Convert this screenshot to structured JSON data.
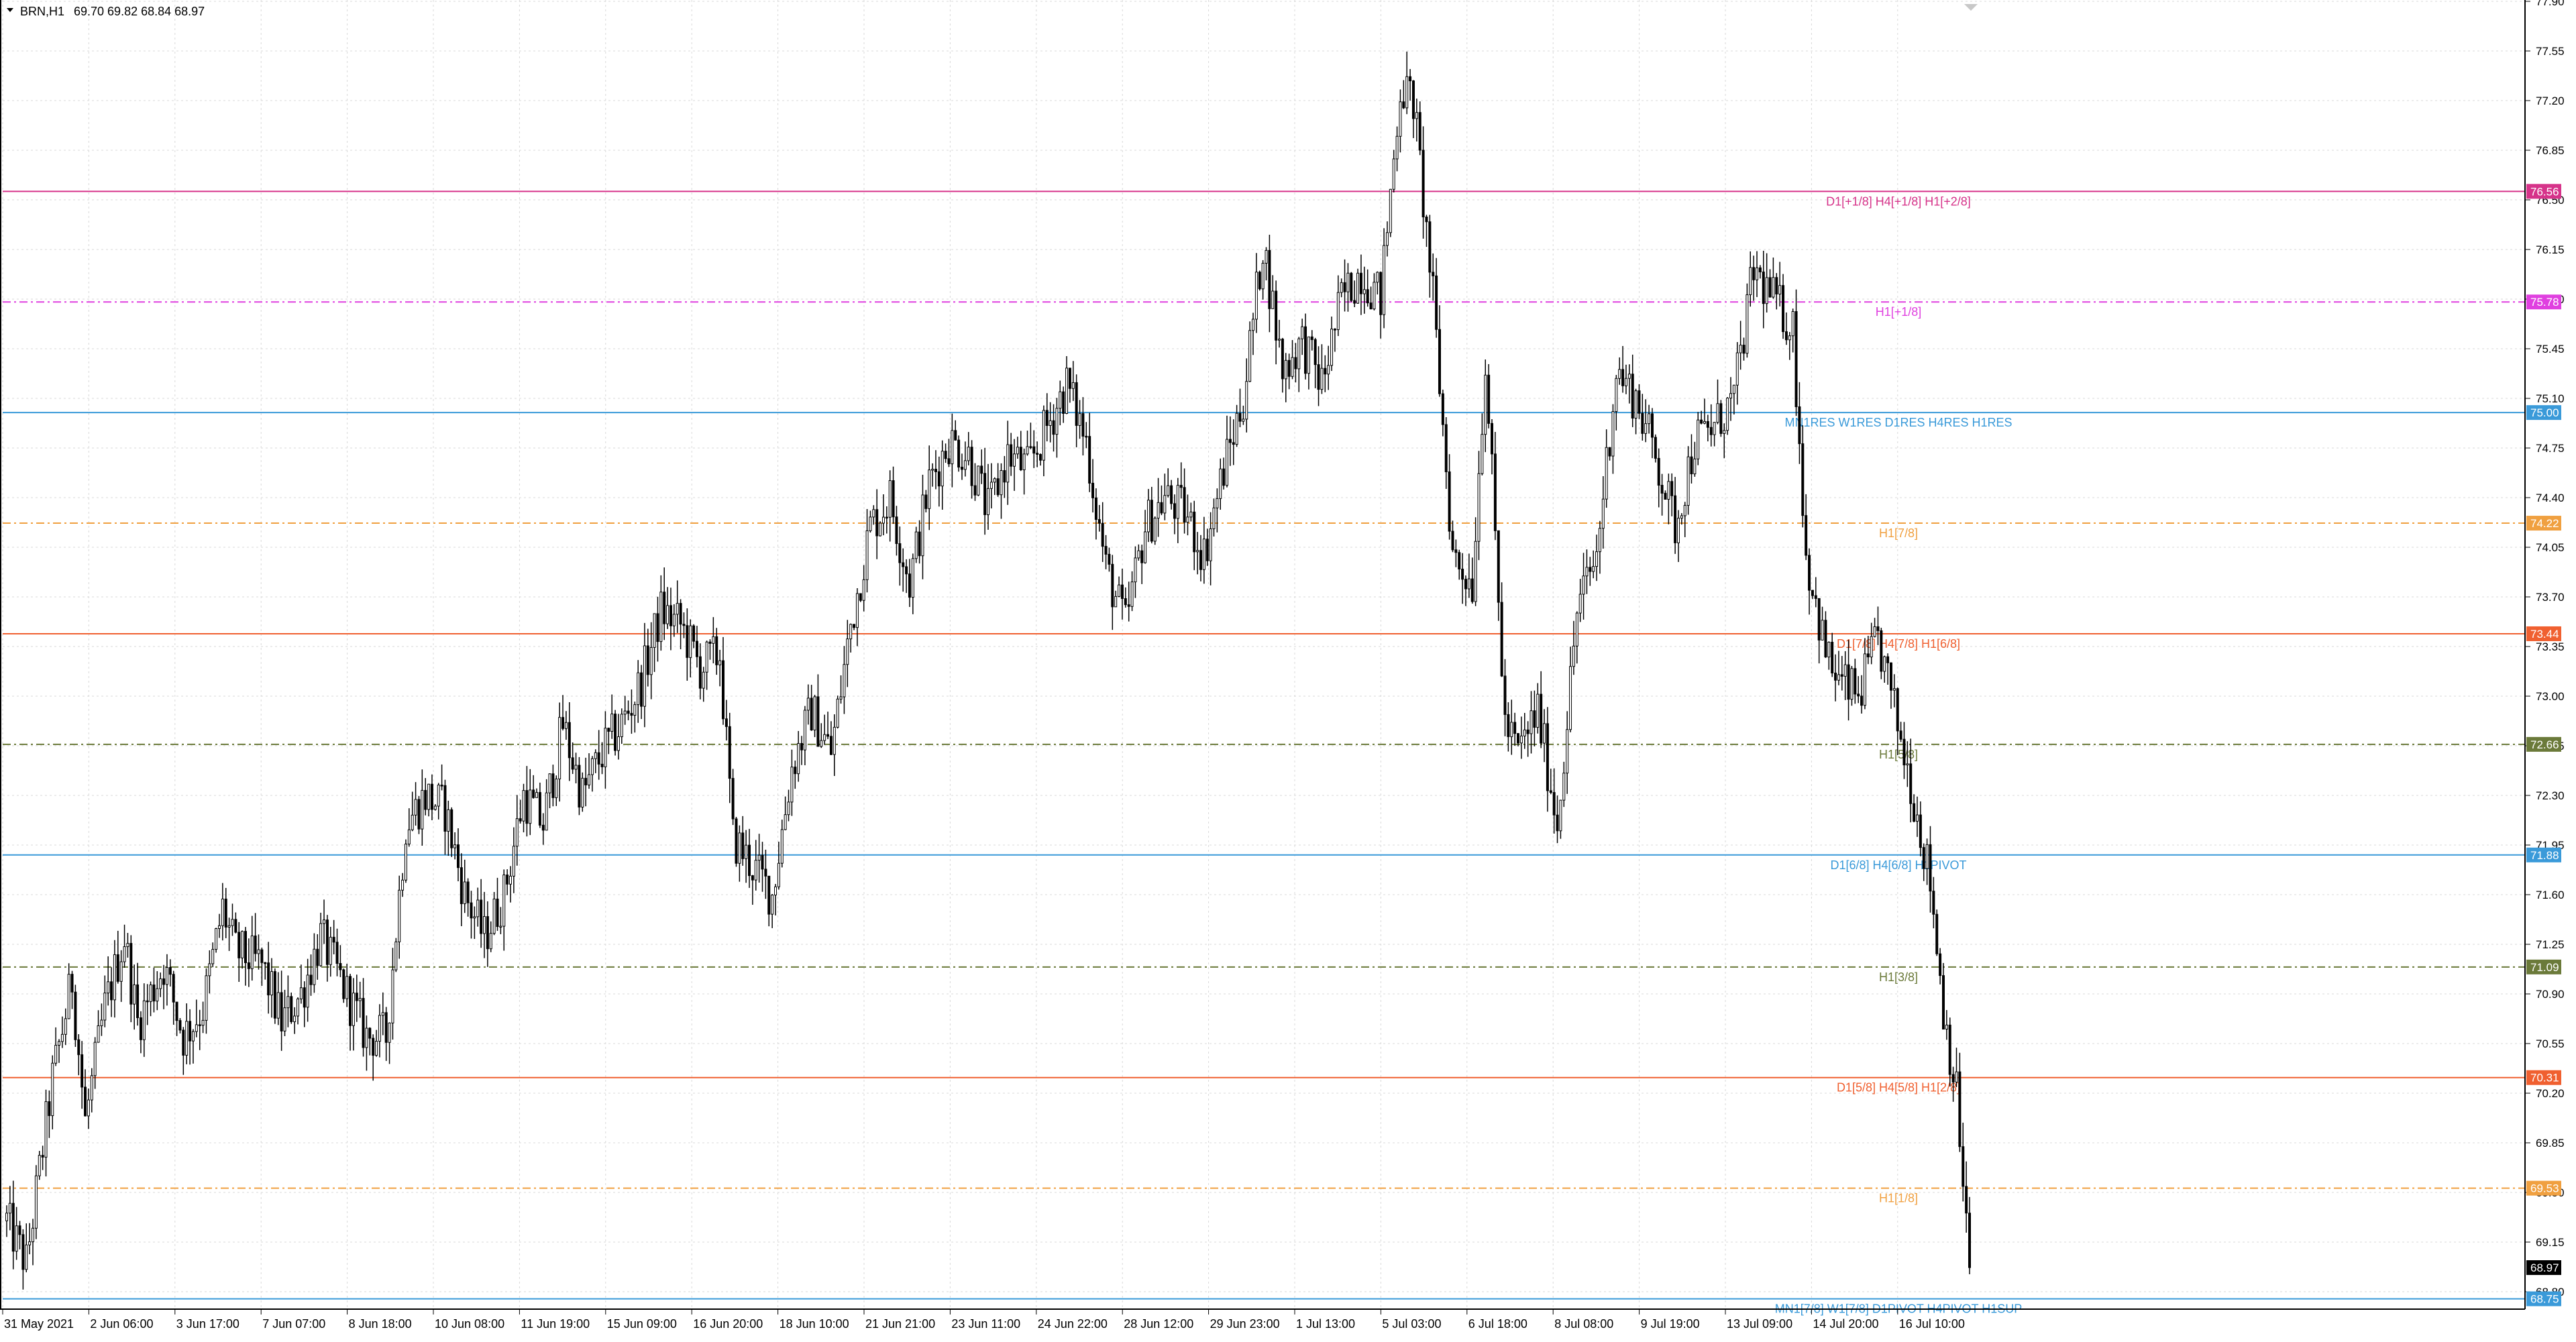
{
  "header": {
    "symbol_tf": "BRN,H1",
    "ohlc": "69.70 69.82 68.84 68.97"
  },
  "colors": {
    "background": "#ffffff",
    "grid": "#d9d9d9",
    "candle": "#000000",
    "axis_text": "#000000",
    "current_price_bg": "#000000"
  },
  "chart_data": {
    "type": "candlestick",
    "title": "BRN,H1",
    "ylim": [
      68.6,
      77.8
    ],
    "y_ticks": [
      "77.90",
      "77.55",
      "77.20",
      "76.85",
      "76.50",
      "76.15",
      "75.80",
      "75.45",
      "75.10",
      "74.75",
      "74.40",
      "74.05",
      "73.70",
      "73.35",
      "73.00",
      "72.65",
      "72.30",
      "71.95",
      "71.60",
      "71.25",
      "70.90",
      "70.55",
      "70.20",
      "69.85",
      "69.50",
      "69.15",
      "68.80"
    ],
    "x_ticks": [
      "31 May 2021",
      "2 Jun 06:00",
      "3 Jun 17:00",
      "7 Jun 07:00",
      "8 Jun 18:00",
      "10 Jun 08:00",
      "11 Jun 19:00",
      "15 Jun 09:00",
      "16 Jun 20:00",
      "18 Jun 10:00",
      "21 Jun 21:00",
      "23 Jun 11:00",
      "24 Jun 22:00",
      "28 Jun 12:00",
      "29 Jun 23:00",
      "1 Jul 13:00",
      "5 Jul 03:00",
      "6 Jul 18:00",
      "8 Jul 08:00",
      "9 Jul 19:00",
      "13 Jul 09:00",
      "14 Jul 20:00",
      "16 Jul 10:00"
    ],
    "price_path": [
      [
        0,
        69.3
      ],
      [
        6,
        69.0
      ],
      [
        14,
        70.3
      ],
      [
        20,
        71.0
      ],
      [
        24,
        70.0
      ],
      [
        30,
        70.8
      ],
      [
        36,
        71.3
      ],
      [
        40,
        70.7
      ],
      [
        48,
        71.1
      ],
      [
        54,
        70.6
      ],
      [
        60,
        70.8
      ],
      [
        66,
        71.5
      ],
      [
        70,
        71.2
      ],
      [
        78,
        71.1
      ],
      [
        84,
        70.7
      ],
      [
        90,
        70.9
      ],
      [
        96,
        71.3
      ],
      [
        102,
        71.0
      ],
      [
        110,
        70.6
      ],
      [
        116,
        70.6
      ],
      [
        122,
        72.1
      ],
      [
        128,
        72.3
      ],
      [
        134,
        72.2
      ],
      [
        140,
        71.6
      ],
      [
        146,
        71.3
      ],
      [
        152,
        71.6
      ],
      [
        158,
        72.3
      ],
      [
        164,
        72.1
      ],
      [
        170,
        72.8
      ],
      [
        176,
        72.3
      ],
      [
        182,
        72.6
      ],
      [
        188,
        72.8
      ],
      [
        194,
        73.1
      ],
      [
        200,
        73.6
      ],
      [
        206,
        73.5
      ],
      [
        212,
        73.2
      ],
      [
        218,
        73.3
      ],
      [
        222,
        72.0
      ],
      [
        228,
        71.8
      ],
      [
        234,
        71.6
      ],
      [
        240,
        72.5
      ],
      [
        246,
        72.9
      ],
      [
        252,
        72.6
      ],
      [
        258,
        73.5
      ],
      [
        264,
        74.2
      ],
      [
        270,
        74.4
      ],
      [
        276,
        73.8
      ],
      [
        282,
        74.5
      ],
      [
        288,
        74.8
      ],
      [
        294,
        74.7
      ],
      [
        300,
        74.3
      ],
      [
        306,
        74.7
      ],
      [
        312,
        74.6
      ],
      [
        318,
        74.9
      ],
      [
        324,
        75.2
      ],
      [
        330,
        74.8
      ],
      [
        336,
        73.9
      ],
      [
        342,
        73.5
      ],
      [
        348,
        74.2
      ],
      [
        354,
        74.4
      ],
      [
        360,
        74.3
      ],
      [
        366,
        74.0
      ],
      [
        372,
        74.6
      ],
      [
        378,
        75.1
      ],
      [
        384,
        76.2
      ],
      [
        390,
        75.3
      ],
      [
        396,
        75.5
      ],
      [
        402,
        75.2
      ],
      [
        408,
        75.8
      ],
      [
        414,
        76.0
      ],
      [
        420,
        75.8
      ],
      [
        426,
        77.3
      ],
      [
        430,
        77.2
      ],
      [
        436,
        75.8
      ],
      [
        442,
        74.0
      ],
      [
        448,
        73.8
      ],
      [
        452,
        75.4
      ],
      [
        458,
        72.8
      ],
      [
        462,
        72.6
      ],
      [
        468,
        72.9
      ],
      [
        474,
        72.1
      ],
      [
        480,
        73.6
      ],
      [
        486,
        74.0
      ],
      [
        492,
        75.3
      ],
      [
        498,
        75.1
      ],
      [
        504,
        74.7
      ],
      [
        510,
        74.2
      ],
      [
        516,
        74.8
      ],
      [
        522,
        74.9
      ],
      [
        528,
        75.1
      ],
      [
        534,
        76.0
      ],
      [
        540,
        75.8
      ],
      [
        546,
        75.6
      ],
      [
        550,
        74.0
      ],
      [
        556,
        73.3
      ],
      [
        560,
        73.1
      ],
      [
        566,
        73.0
      ],
      [
        572,
        73.4
      ],
      [
        578,
        72.8
      ],
      [
        582,
        72.4
      ],
      [
        588,
        71.7
      ],
      [
        592,
        70.8
      ],
      [
        596,
        70.2
      ],
      [
        600,
        68.97
      ]
    ],
    "levels": [
      {
        "price": 76.56,
        "label": "D1[+1/8] H4[+1/8] H1[+2/8]",
        "tag": "76.56",
        "color": "#d6338a",
        "style": "solid"
      },
      {
        "price": 75.78,
        "label": "H1[+1/8]",
        "tag": "75.78",
        "color": "#e040e0",
        "style": "dashdot"
      },
      {
        "price": 75.0,
        "label": "MN1RES W1RES D1RES H4RES H1RES",
        "tag": "75.00",
        "color": "#3a9ad9",
        "style": "solid"
      },
      {
        "price": 74.22,
        "label": "H1[7/8]",
        "tag": "74.22",
        "color": "#f0a040",
        "style": "dashdot"
      },
      {
        "price": 73.44,
        "label": "D1[7/8] H4[7/8] H1[6/8]",
        "tag": "73.44",
        "color": "#f06030",
        "style": "solid"
      },
      {
        "price": 72.66,
        "label": "H1[5/8]",
        "tag": "72.66",
        "color": "#6b7a3a",
        "style": "dashdot"
      },
      {
        "price": 71.88,
        "label": "D1[6/8] H4[6/8] H1PIVOT",
        "tag": "71.88",
        "color": "#3a9ad9",
        "style": "solid"
      },
      {
        "price": 71.09,
        "label": "H1[3/8]",
        "tag": "71.09",
        "color": "#6b7a3a",
        "style": "dashdot"
      },
      {
        "price": 70.31,
        "label": "D1[5/8] H4[5/8] H1[2/8]",
        "tag": "70.31",
        "color": "#f06030",
        "style": "solid"
      },
      {
        "price": 69.53,
        "label": "H1[1/8]",
        "tag": "69.53",
        "color": "#f0a040",
        "style": "dashdot"
      },
      {
        "price": 68.75,
        "label": "MN1[7/8] W1[7/8] D1PIVOT H4PIVOT H1SUP",
        "tag": "68.75",
        "color": "#3a9ad9",
        "style": "solid"
      }
    ],
    "current_price": "68.97",
    "grid": true
  }
}
